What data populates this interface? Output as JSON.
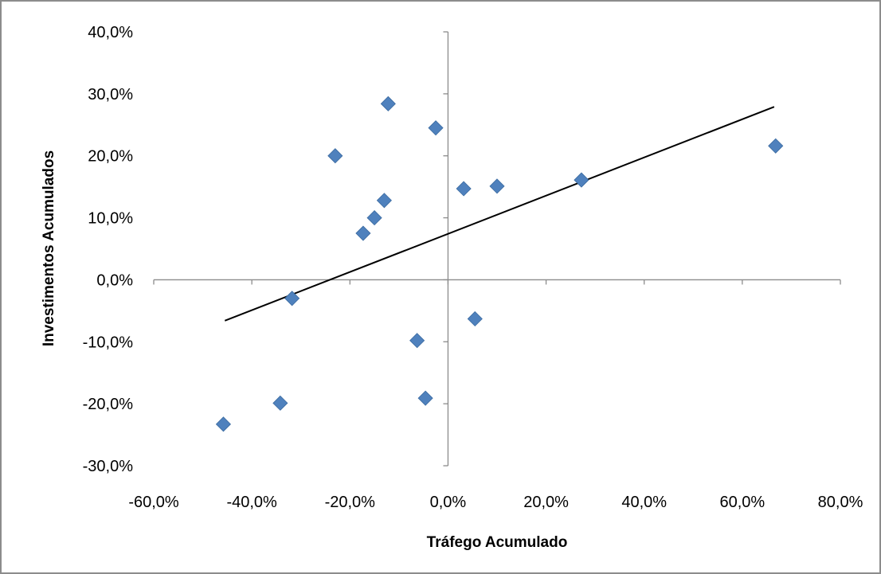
{
  "chart_data": {
    "type": "scatter",
    "title": "",
    "xlabel": "Tráfego Acumulado",
    "ylabel": "Investimentos Acumulados",
    "xlim": [
      -60,
      80
    ],
    "ylim": [
      -30,
      40
    ],
    "x_ticks": [
      -60,
      -40,
      -20,
      0,
      20,
      40,
      60,
      80
    ],
    "y_ticks": [
      -30,
      -20,
      -10,
      0,
      10,
      20,
      30,
      40
    ],
    "x_tick_labels": [
      "-60,0%",
      "-40,0%",
      "-20,0%",
      "0,0%",
      "20,0%",
      "40,0%",
      "60,0%",
      "80,0%"
    ],
    "y_tick_labels": [
      "-30,0%",
      "-20,0%",
      "-10,0%",
      "0,0%",
      "10,0%",
      "20,0%",
      "30,0%",
      "40,0%"
    ],
    "grid": false,
    "legend": "none",
    "marker": "diamond",
    "marker_color": "#4f81bd",
    "trendline_color": "#000000",
    "points": [
      {
        "x": -45.8,
        "y": -23.3
      },
      {
        "x": -34.2,
        "y": -19.9
      },
      {
        "x": -31.8,
        "y": -3.0
      },
      {
        "x": -23.0,
        "y": 20.0
      },
      {
        "x": -17.3,
        "y": 7.5
      },
      {
        "x": -15.0,
        "y": 10.0
      },
      {
        "x": -13.0,
        "y": 12.8
      },
      {
        "x": -12.2,
        "y": 28.4
      },
      {
        "x": -6.3,
        "y": -9.8
      },
      {
        "x": -4.6,
        "y": -19.1
      },
      {
        "x": -2.5,
        "y": 24.5
      },
      {
        "x": 3.2,
        "y": 14.7
      },
      {
        "x": 5.5,
        "y": -6.3
      },
      {
        "x": 10.0,
        "y": 15.1
      },
      {
        "x": 27.2,
        "y": 16.1
      },
      {
        "x": 66.8,
        "y": 21.6
      }
    ],
    "trendline": {
      "x": [
        -45.5,
        66.5
      ],
      "y": [
        -6.6,
        27.9
      ]
    }
  }
}
